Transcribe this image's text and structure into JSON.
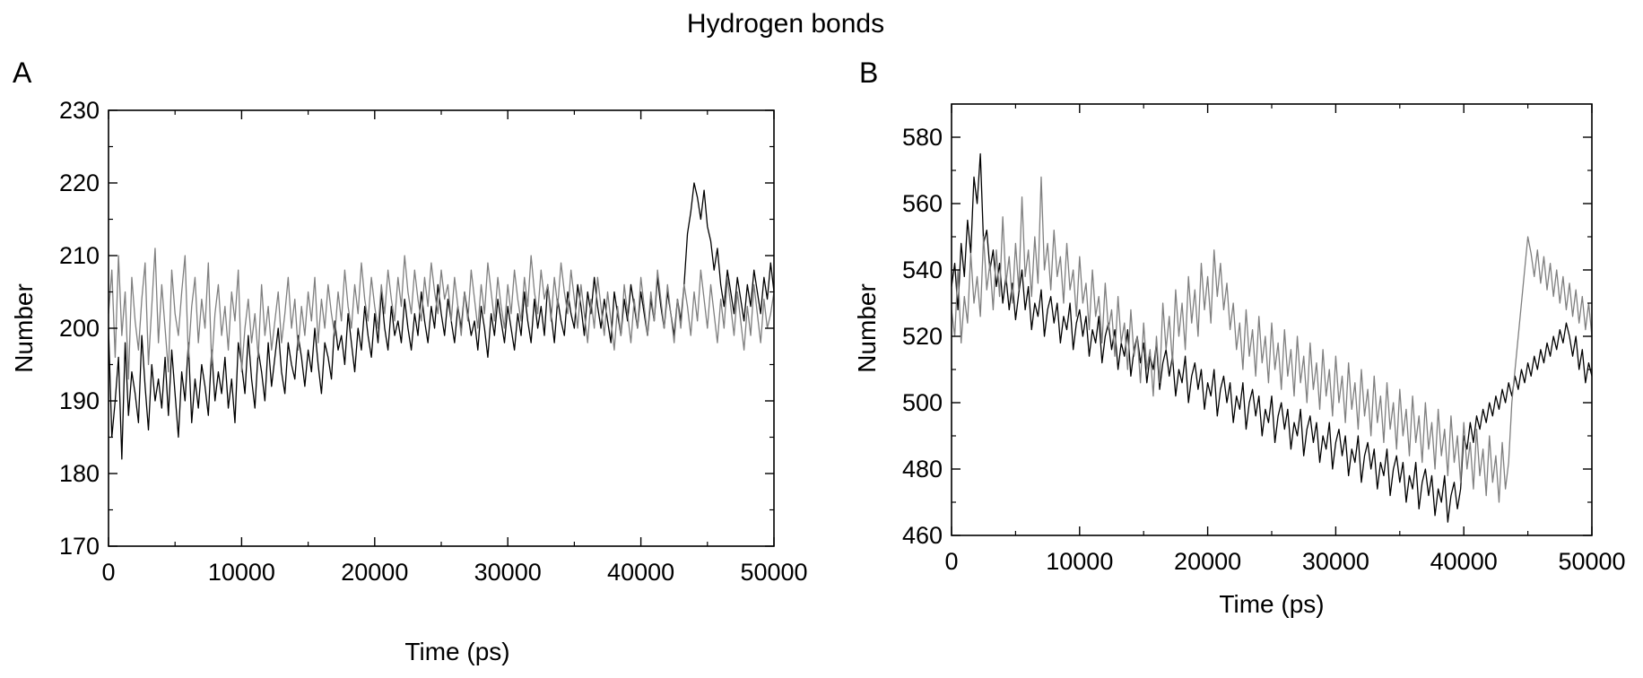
{
  "figure": {
    "title": "Hydrogen bonds"
  },
  "chart_data": [
    {
      "type": "line",
      "panel": "A",
      "xlabel": "Time (ps)",
      "ylabel": "Number",
      "xlim": [
        0,
        50000
      ],
      "ylim": [
        170,
        230
      ],
      "xticks": [
        "0",
        "10000",
        "20000",
        "30000",
        "40000",
        "50000"
      ],
      "yticks": [
        "170",
        "180",
        "190",
        "200",
        "210",
        "220",
        "230"
      ],
      "x_start": 0,
      "x_step": 250,
      "grid": false,
      "legend": "none",
      "series": [
        {
          "color": "#000000",
          "values": [
            200,
            185,
            190,
            196,
            182,
            198,
            188,
            194,
            191,
            187,
            199,
            192,
            186,
            195,
            190,
            193,
            189,
            196,
            188,
            197,
            191,
            185,
            194,
            190,
            198,
            187,
            193,
            189,
            195,
            192,
            188,
            197,
            190,
            194,
            191,
            196,
            189,
            193,
            187,
            198,
            195,
            191,
            199,
            193,
            189,
            197,
            194,
            190,
            198,
            192,
            196,
            200,
            194,
            191,
            198,
            195,
            193,
            199,
            196,
            192,
            197,
            194,
            200,
            195,
            191,
            198,
            196,
            193,
            201,
            197,
            199,
            195,
            202,
            198,
            194,
            200,
            197,
            203,
            199,
            196,
            202,
            198,
            205,
            200,
            197,
            203,
            199,
            201,
            198,
            204,
            200,
            197,
            202,
            199,
            205,
            201,
            198,
            203,
            200,
            206,
            202,
            199,
            204,
            201,
            198,
            203,
            200,
            205,
            202,
            199,
            201,
            197,
            203,
            200,
            196,
            202,
            199,
            204,
            201,
            198,
            203,
            200,
            197,
            202,
            199,
            205,
            201,
            198,
            204,
            200,
            203,
            199,
            206,
            202,
            198,
            204,
            201,
            199,
            205,
            202,
            200,
            206,
            203,
            199,
            205,
            202,
            207,
            203,
            200,
            204,
            201,
            198,
            205,
            202,
            199,
            204,
            201,
            206,
            203,
            200,
            205,
            202,
            199,
            204,
            201,
            207,
            203,
            200,
            205,
            202,
            199,
            204,
            201,
            206,
            213,
            216,
            220,
            218,
            215,
            219,
            214,
            212,
            208,
            211,
            206,
            203,
            208,
            205,
            202,
            207,
            204,
            201,
            206,
            203,
            208,
            205,
            202,
            207,
            204,
            209,
            205
          ]
        },
        {
          "color": "#7f7f7f",
          "values": [
            202,
            208,
            196,
            210,
            199,
            205,
            193,
            207,
            201,
            197,
            204,
            209,
            195,
            203,
            211,
            198,
            206,
            200,
            194,
            208,
            202,
            199,
            205,
            210,
            196,
            203,
            207,
            198,
            204,
            200,
            209,
            195,
            202,
            206,
            199,
            203,
            197,
            205,
            201,
            208,
            194,
            200,
            204,
            198,
            202,
            196,
            206,
            199,
            203,
            197,
            201,
            205,
            198,
            202,
            207,
            200,
            204,
            197,
            203,
            199,
            205,
            201,
            207,
            198,
            204,
            200,
            206,
            202,
            199,
            205,
            201,
            208,
            203,
            200,
            206,
            202,
            209,
            204,
            201,
            207,
            203,
            200,
            206,
            202,
            208,
            204,
            201,
            207,
            203,
            210,
            205,
            202,
            208,
            204,
            201,
            207,
            203,
            209,
            205,
            202,
            208,
            204,
            206,
            201,
            207,
            203,
            199,
            205,
            201,
            208,
            204,
            200,
            206,
            202,
            209,
            205,
            201,
            207,
            203,
            200,
            206,
            202,
            208,
            204,
            201,
            207,
            203,
            210,
            205,
            202,
            208,
            204,
            206,
            201,
            207,
            203,
            209,
            205,
            202,
            208,
            204,
            200,
            206,
            202,
            198,
            204,
            200,
            207,
            203,
            199,
            205,
            201,
            197,
            203,
            199,
            206,
            202,
            198,
            204,
            200,
            207,
            203,
            199,
            205,
            201,
            208,
            204,
            200,
            206,
            202,
            198,
            204,
            200,
            206,
            203,
            199,
            205,
            201,
            208,
            204,
            200,
            206,
            202,
            198,
            204,
            200,
            207,
            203,
            199,
            205,
            201,
            197,
            203,
            199,
            206,
            202,
            198,
            204,
            200,
            202,
            205
          ]
        }
      ]
    },
    {
      "type": "line",
      "panel": "B",
      "xlabel": "Time (ps)",
      "ylabel": "Number",
      "xlim": [
        0,
        50000
      ],
      "ylim": [
        460,
        590
      ],
      "xticks": [
        "0",
        "10000",
        "20000",
        "30000",
        "40000",
        "50000"
      ],
      "yticks": [
        "460",
        "480",
        "500",
        "520",
        "540",
        "560",
        "580"
      ],
      "x_start": 0,
      "x_step": 250,
      "grid": false,
      "legend": "none",
      "series": [
        {
          "color": "#000000",
          "values": [
            535,
            542,
            528,
            548,
            538,
            555,
            545,
            568,
            560,
            575,
            548,
            552,
            540,
            546,
            535,
            542,
            530,
            538,
            528,
            536,
            525,
            533,
            540,
            528,
            535,
            522,
            530,
            526,
            534,
            520,
            528,
            532,
            524,
            530,
            518,
            526,
            522,
            530,
            516,
            524,
            528,
            520,
            526,
            514,
            522,
            518,
            526,
            512,
            520,
            524,
            516,
            522,
            510,
            518,
            514,
            522,
            508,
            516,
            520,
            512,
            518,
            506,
            514,
            510,
            518,
            504,
            512,
            516,
            508,
            514,
            502,
            510,
            506,
            514,
            500,
            508,
            512,
            504,
            510,
            498,
            506,
            502,
            510,
            496,
            504,
            508,
            500,
            506,
            494,
            502,
            498,
            506,
            492,
            500,
            504,
            496,
            502,
            490,
            498,
            494,
            502,
            488,
            496,
            500,
            492,
            498,
            486,
            494,
            490,
            498,
            484,
            492,
            496,
            488,
            494,
            482,
            490,
            486,
            494,
            480,
            488,
            492,
            484,
            490,
            478,
            486,
            482,
            490,
            476,
            484,
            488,
            480,
            486,
            474,
            482,
            478,
            486,
            472,
            480,
            484,
            476,
            482,
            470,
            478,
            474,
            482,
            468,
            476,
            480,
            472,
            478,
            466,
            474,
            470,
            478,
            464,
            472,
            476,
            468,
            474,
            490,
            486,
            494,
            488,
            496,
            492,
            498,
            494,
            500,
            496,
            502,
            498,
            504,
            500,
            506,
            502,
            508,
            504,
            510,
            506,
            512,
            508,
            514,
            510,
            516,
            512,
            518,
            514,
            520,
            516,
            522,
            518,
            524,
            520,
            514,
            520,
            510,
            516,
            506,
            512,
            508
          ]
        },
        {
          "color": "#7f7f7f",
          "values": [
            528,
            520,
            540,
            518,
            532,
            524,
            545,
            530,
            538,
            526,
            550,
            534,
            542,
            528,
            546,
            532,
            556,
            536,
            544,
            530,
            548,
            534,
            562,
            538,
            546,
            532,
            550,
            536,
            568,
            540,
            548,
            534,
            552,
            538,
            544,
            530,
            548,
            534,
            540,
            526,
            544,
            530,
            536,
            522,
            540,
            526,
            532,
            518,
            536,
            522,
            528,
            514,
            532,
            518,
            524,
            510,
            528,
            514,
            520,
            506,
            524,
            510,
            516,
            502,
            520,
            506,
            530,
            516,
            526,
            512,
            534,
            520,
            530,
            516,
            538,
            524,
            534,
            520,
            542,
            528,
            538,
            524,
            546,
            532,
            542,
            528,
            536,
            522,
            530,
            516,
            524,
            510,
            528,
            514,
            522,
            508,
            526,
            512,
            520,
            506,
            524,
            510,
            518,
            504,
            522,
            508,
            516,
            502,
            520,
            506,
            514,
            500,
            518,
            504,
            512,
            498,
            516,
            502,
            510,
            496,
            514,
            500,
            508,
            494,
            512,
            498,
            506,
            492,
            510,
            496,
            504,
            490,
            508,
            494,
            502,
            488,
            506,
            492,
            500,
            486,
            504,
            490,
            498,
            484,
            502,
            488,
            496,
            482,
            500,
            486,
            494,
            480,
            498,
            484,
            492,
            478,
            496,
            482,
            490,
            476,
            494,
            480,
            488,
            474,
            492,
            478,
            486,
            472,
            490,
            476,
            484,
            470,
            488,
            474,
            482,
            500,
            510,
            520,
            530,
            540,
            550,
            545,
            538,
            546,
            536,
            544,
            534,
            542,
            532,
            540,
            530,
            538,
            528,
            536,
            526,
            534,
            524,
            532,
            522,
            530,
            520
          ]
        }
      ]
    }
  ]
}
